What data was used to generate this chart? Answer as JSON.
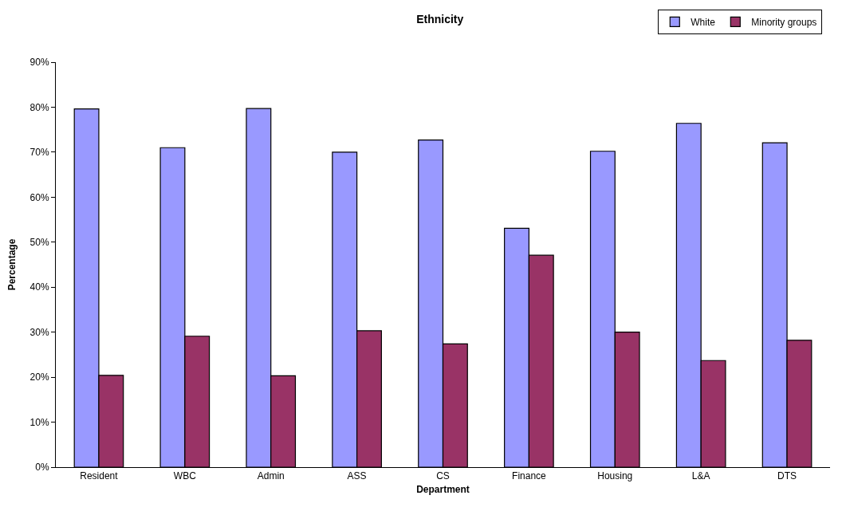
{
  "chart_data": {
    "type": "bar",
    "title": "Ethnicity",
    "xlabel": "Department",
    "ylabel": "Percentage",
    "categories": [
      "Resident",
      "WBC",
      "Admin",
      "ASS",
      "CS",
      "Finance",
      "Housing",
      "L&A",
      "DTS"
    ],
    "series": [
      {
        "name": "White",
        "color": "#9999ff",
        "values": [
          79.6,
          71.0,
          79.7,
          70.0,
          72.7,
          53.1,
          70.2,
          76.4,
          72.1
        ]
      },
      {
        "name": "Minority groups",
        "color": "#993366",
        "values": [
          20.4,
          29.1,
          20.3,
          30.3,
          27.4,
          47.1,
          30.0,
          23.7,
          28.2
        ]
      }
    ],
    "ylim": [
      0,
      90
    ],
    "yticks": [
      {
        "value": 0,
        "label": "0%"
      },
      {
        "value": 10,
        "label": "10%"
      },
      {
        "value": 20,
        "label": "20%"
      },
      {
        "value": 30,
        "label": "30%"
      },
      {
        "value": 40,
        "label": "40%"
      },
      {
        "value": 50,
        "label": "50%"
      },
      {
        "value": 60,
        "label": "60%"
      },
      {
        "value": 70,
        "label": "70%"
      },
      {
        "value": 80,
        "label": "80%"
      },
      {
        "value": 90,
        "label": "90%"
      }
    ],
    "grid": false,
    "legend": "top right"
  }
}
